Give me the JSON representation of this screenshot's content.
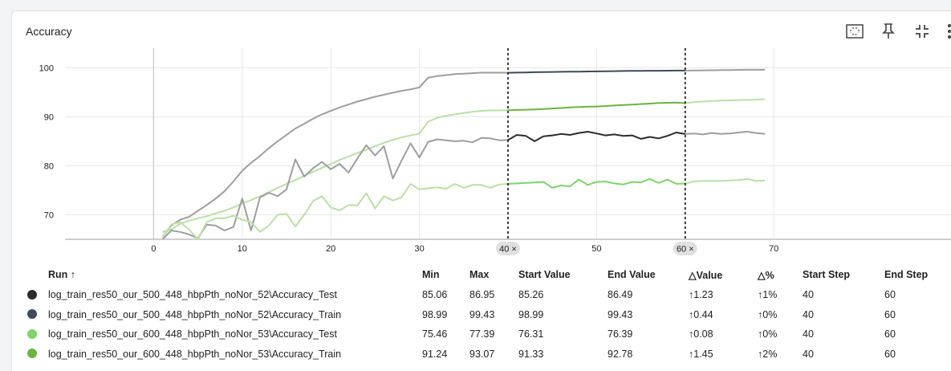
{
  "card": {
    "title": "Accuracy"
  },
  "toolbar": {
    "icons": [
      "fit-domain-icon",
      "pin-icon",
      "collapse-icon",
      "more-icon"
    ]
  },
  "colors": {
    "run1_test": "#2b2b2b",
    "run1_train": "#3c4a5c",
    "run2_test": "#7ed36a",
    "run2_train": "#6db33f",
    "faded_gray": "#9e9e9e",
    "faded_light": "#b9e0a5",
    "grid": "#e6e6e6"
  },
  "chart_data": {
    "type": "line",
    "title": "Accuracy",
    "xlim": [
      -10,
      90
    ],
    "ylim": [
      65,
      104
    ],
    "x_ticks": [
      0,
      10,
      20,
      30,
      40,
      50,
      60,
      70
    ],
    "x_tick_labels": [
      "0",
      "10",
      "20",
      "30",
      "",
      "50",
      "",
      "70"
    ],
    "y_ticks": [
      70,
      80,
      90,
      100
    ],
    "y_tick_labels": [
      "70",
      "80",
      "90",
      "100"
    ],
    "grid": true,
    "selected_range": [
      40,
      60
    ],
    "range_badges": [
      "40 ×",
      "60 ×"
    ],
    "series": [
      {
        "key": "run1_train",
        "x": [
          1,
          2,
          3,
          4,
          5,
          6,
          7,
          8,
          9,
          10,
          11,
          12,
          13,
          14,
          15,
          16,
          17,
          18,
          19,
          20,
          21,
          22,
          23,
          24,
          25,
          26,
          27,
          28,
          29,
          30,
          31,
          32,
          33,
          34,
          35,
          36,
          37,
          38,
          39,
          40,
          41,
          42,
          43,
          44,
          45,
          46,
          47,
          48,
          49,
          50,
          51,
          52,
          53,
          54,
          55,
          56,
          57,
          58,
          59,
          60,
          61,
          62,
          63,
          64,
          65,
          66,
          67,
          68,
          69
        ],
        "values": [
          65.5,
          67.8,
          69.0,
          69.6,
          70.8,
          72.0,
          73.3,
          74.8,
          76.8,
          79.0,
          80.6,
          82.0,
          83.6,
          85.0,
          86.3,
          87.6,
          88.6,
          89.6,
          90.5,
          91.2,
          91.9,
          92.5,
          93.1,
          93.6,
          94.1,
          94.5,
          94.9,
          95.3,
          95.6,
          96.0,
          98.0,
          98.3,
          98.5,
          98.7,
          98.8,
          98.9,
          99.0,
          99.0,
          99.0,
          98.99,
          99.02,
          99.05,
          99.1,
          99.12,
          99.15,
          99.18,
          99.2,
          99.22,
          99.25,
          99.27,
          99.3,
          99.32,
          99.34,
          99.36,
          99.38,
          99.4,
          99.4,
          99.41,
          99.42,
          99.43,
          99.45,
          99.47,
          99.5,
          99.52,
          99.55,
          99.57,
          99.6,
          99.6,
          99.6
        ]
      },
      {
        "key": "run2_train",
        "x": [
          1,
          2,
          3,
          4,
          5,
          6,
          7,
          8,
          9,
          10,
          11,
          12,
          13,
          14,
          15,
          16,
          17,
          18,
          19,
          20,
          21,
          22,
          23,
          24,
          25,
          26,
          27,
          28,
          29,
          30,
          31,
          32,
          33,
          34,
          35,
          36,
          37,
          38,
          39,
          40,
          41,
          42,
          43,
          44,
          45,
          46,
          47,
          48,
          49,
          50,
          51,
          52,
          53,
          54,
          55,
          56,
          57,
          58,
          59,
          60,
          61,
          62,
          63,
          64,
          65,
          66,
          67,
          68,
          69
        ],
        "values": [
          66.5,
          67.0,
          68.2,
          68.8,
          69.3,
          69.7,
          70.3,
          70.8,
          71.5,
          72.3,
          73.0,
          73.8,
          74.6,
          75.5,
          76.3,
          77.1,
          78.0,
          78.8,
          79.6,
          80.4,
          81.2,
          81.9,
          82.6,
          83.3,
          84.0,
          84.7,
          85.3,
          85.8,
          86.2,
          86.6,
          89.0,
          89.8,
          90.2,
          90.5,
          90.8,
          91.0,
          91.2,
          91.3,
          91.3,
          91.33,
          91.4,
          91.45,
          91.5,
          91.6,
          91.7,
          91.8,
          91.9,
          92.0,
          92.05,
          92.1,
          92.2,
          92.3,
          92.4,
          92.5,
          92.6,
          92.7,
          92.8,
          92.85,
          92.9,
          92.78,
          93.0,
          93.1,
          93.2,
          93.3,
          93.35,
          93.4,
          93.45,
          93.5,
          93.6
        ]
      },
      {
        "key": "run1_test",
        "x": [
          1,
          2,
          3,
          4,
          5,
          6,
          7,
          8,
          9,
          10,
          11,
          12,
          13,
          14,
          15,
          16,
          17,
          18,
          19,
          20,
          21,
          22,
          23,
          24,
          25,
          26,
          27,
          28,
          29,
          30,
          31,
          32,
          33,
          34,
          35,
          36,
          37,
          38,
          39,
          40,
          41,
          42,
          43,
          44,
          45,
          46,
          47,
          48,
          49,
          50,
          51,
          52,
          53,
          54,
          55,
          56,
          57,
          58,
          59,
          60,
          61,
          62,
          63,
          64,
          65,
          66,
          67,
          68,
          69
        ],
        "values": [
          65.0,
          66.8,
          66.5,
          66.0,
          65.2,
          68.0,
          67.8,
          66.8,
          67.5,
          73.3,
          66.8,
          73.5,
          74.5,
          73.8,
          75.2,
          81.3,
          77.8,
          79.5,
          80.8,
          79.3,
          80.4,
          78.6,
          81.5,
          84.2,
          82.1,
          84.0,
          77.4,
          81.1,
          84.6,
          81.7,
          84.9,
          85.4,
          85.2,
          85.0,
          85.1,
          84.8,
          85.7,
          85.6,
          85.2,
          85.26,
          86.3,
          86.1,
          85.0,
          86.0,
          86.2,
          86.5,
          86.3,
          86.7,
          86.95,
          86.6,
          86.2,
          86.4,
          86.1,
          86.2,
          85.5,
          85.9,
          85.6,
          86.1,
          86.8,
          86.49,
          86.6,
          86.4,
          86.7,
          86.5,
          86.6,
          86.8,
          86.95,
          86.7,
          86.5
        ]
      },
      {
        "key": "run2_test",
        "x": [
          1,
          2,
          3,
          4,
          5,
          6,
          7,
          8,
          9,
          10,
          11,
          12,
          13,
          14,
          15,
          16,
          17,
          18,
          19,
          20,
          21,
          22,
          23,
          24,
          25,
          26,
          27,
          28,
          29,
          30,
          31,
          32,
          33,
          34,
          35,
          36,
          37,
          38,
          39,
          40,
          41,
          42,
          43,
          44,
          45,
          46,
          47,
          48,
          49,
          50,
          51,
          52,
          53,
          54,
          55,
          56,
          57,
          58,
          59,
          60,
          61,
          62,
          63,
          64,
          65,
          66,
          67,
          68,
          69
        ],
        "values": [
          65.5,
          68.0,
          68.5,
          67.0,
          65.0,
          68.5,
          69.3,
          69.3,
          69.8,
          69.0,
          68.5,
          66.5,
          67.8,
          70.0,
          70.2,
          67.6,
          70.0,
          72.8,
          73.8,
          71.5,
          70.9,
          72.0,
          71.9,
          74.4,
          71.3,
          73.8,
          72.9,
          73.6,
          76.3,
          75.2,
          75.4,
          75.6,
          75.3,
          76.3,
          75.5,
          76.1,
          76.1,
          75.5,
          76.2,
          76.31,
          76.4,
          76.5,
          76.6,
          76.7,
          75.5,
          76.0,
          75.8,
          77.2,
          76.1,
          76.7,
          76.8,
          76.4,
          76.2,
          76.7,
          76.6,
          77.3,
          76.5,
          77.2,
          76.3,
          76.39,
          76.8,
          76.9,
          76.9,
          76.9,
          77.0,
          77.1,
          77.3,
          76.9,
          77.0
        ]
      }
    ]
  },
  "table": {
    "headers": {
      "run": "Run ↑",
      "min": "Min",
      "max": "Max",
      "start_value": "Start Value",
      "end_value": "End Value",
      "delta_value": "△Value",
      "delta_pct": "△%",
      "start_step": "Start Step",
      "end_step": "End Step"
    },
    "rows": [
      {
        "color_key": "run1_test",
        "run": "log_train_res50_our_500_448_hbpPth_noNor_52\\Accuracy_Test",
        "min": "85.06",
        "max": "86.95",
        "start_value": "85.26",
        "end_value": "86.49",
        "delta_value": "↑1.23",
        "delta_pct": "↑1%",
        "start_step": "40",
        "end_step": "60"
      },
      {
        "color_key": "run1_train",
        "run": "log_train_res50_our_500_448_hbpPth_noNor_52\\Accuracy_Train",
        "min": "98.99",
        "max": "99.43",
        "start_value": "98.99",
        "end_value": "99.43",
        "delta_value": "↑0.44",
        "delta_pct": "↑0%",
        "start_step": "40",
        "end_step": "60"
      },
      {
        "color_key": "run2_test",
        "run": "log_train_res50_our_600_448_hbpPth_noNor_53\\Accuracy_Test",
        "min": "75.46",
        "max": "77.39",
        "start_value": "76.31",
        "end_value": "76.39",
        "delta_value": "↑0.08",
        "delta_pct": "↑0%",
        "start_step": "40",
        "end_step": "60"
      },
      {
        "color_key": "run2_train",
        "run": "log_train_res50_our_600_448_hbpPth_noNor_53\\Accuracy_Train",
        "min": "91.24",
        "max": "93.07",
        "start_value": "91.33",
        "end_value": "92.78",
        "delta_value": "↑1.45",
        "delta_pct": "↑2%",
        "start_step": "40",
        "end_step": "60"
      }
    ]
  }
}
